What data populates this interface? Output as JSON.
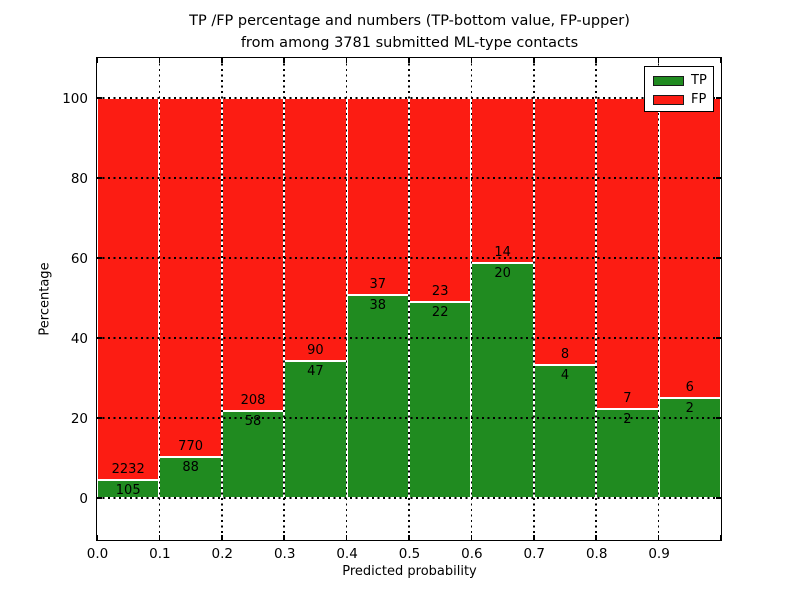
{
  "figure": {
    "title_line1": "TP /FP percentage and numbers (TP-bottom value, FP-upper)",
    "title_line2": "from among 3781 submitted ML-type contacts"
  },
  "chart_data": {
    "type": "bar",
    "stacked": true,
    "title": "TP /FP percentage and numbers (TP-bottom value, FP-upper)\nfrom among 3781 submitted ML-type contacts",
    "xlabel": "Predicted probability",
    "ylabel": "Percentage",
    "xlim": [
      0.0,
      1.0
    ],
    "ylim": [
      -10.5,
      110.0
    ],
    "x_tick_labels": [
      "0.0",
      "0.1",
      "0.2",
      "0.3",
      "0.4",
      "0.5",
      "0.6",
      "0.7",
      "0.8",
      "0.9"
    ],
    "y_tick_labels": [
      "0",
      "20",
      "40",
      "60",
      "80",
      "100"
    ],
    "y_ticks": [
      0,
      20,
      40,
      60,
      80,
      100
    ],
    "grid": "dotted black, drawn above bars",
    "bar_unit": "percentage of bin total; TP green bottom segment, FP red upper segment, stacks sum to 100",
    "legend": {
      "position": "upper right",
      "entries": [
        {
          "label": "TP",
          "color": "#208b20"
        },
        {
          "label": "FP",
          "color": "#fc1c13"
        }
      ]
    },
    "bins": [
      {
        "range": [
          0.0,
          0.1
        ],
        "tp": 105,
        "fp": 2232
      },
      {
        "range": [
          0.1,
          0.2
        ],
        "tp": 88,
        "fp": 770
      },
      {
        "range": [
          0.2,
          0.3
        ],
        "tp": 58,
        "fp": 208
      },
      {
        "range": [
          0.3,
          0.4
        ],
        "tp": 47,
        "fp": 90
      },
      {
        "range": [
          0.4,
          0.5
        ],
        "tp": 38,
        "fp": 37
      },
      {
        "range": [
          0.5,
          0.6
        ],
        "tp": 22,
        "fp": 23
      },
      {
        "range": [
          0.6,
          0.7
        ],
        "tp": 20,
        "fp": 14
      },
      {
        "range": [
          0.7,
          0.8
        ],
        "tp": 4,
        "fp": 8
      },
      {
        "range": [
          0.8,
          0.9
        ],
        "tp": 2,
        "fp": 7
      },
      {
        "range": [
          0.9,
          1.0
        ],
        "tp": 2,
        "fp": 6
      }
    ]
  }
}
